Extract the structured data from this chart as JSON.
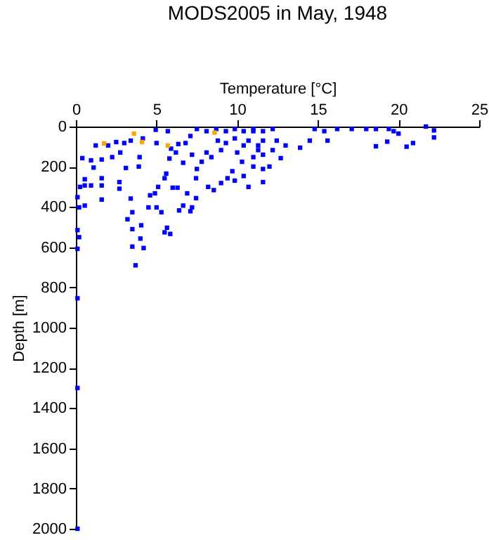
{
  "chart_data": {
    "type": "scatter",
    "title": "MODS2005 in May, 1948",
    "xlabel": "Temperature [°C]",
    "ylabel": "Depth [m]",
    "xlim": [
      0,
      25
    ],
    "xticks": [
      0,
      5,
      10,
      15,
      20,
      25
    ],
    "ylim": [
      2000,
      0
    ],
    "yticks": [
      0,
      200,
      400,
      600,
      800,
      1000,
      1200,
      1400,
      1600,
      1800,
      2000
    ],
    "grid": false,
    "legend": false,
    "marker": "square",
    "series": [
      {
        "color": "#0000ff",
        "x": [
          0.1,
          0.1,
          0.1,
          0.1,
          0.2,
          0.1,
          0.2,
          0.55,
          0.1,
          0.26,
          0.55,
          0.94,
          1.6,
          1.6,
          0.55,
          1.6,
          0.4,
          0.94,
          1.1,
          1.6,
          1.23,
          2,
          2.25,
          2.75,
          2.7,
          2.7,
          2.5,
          3,
          3.4,
          4.15,
          3.95,
          3.1,
          3.9,
          3.4,
          3.5,
          3.2,
          3.5,
          4.05,
          4,
          4.2,
          3.7,
          3.5,
          4.6,
          4.9,
          4.5,
          5,
          5.3,
          5.65,
          5.85,
          5.5,
          4.95,
          5,
          5.7,
          5.9,
          5.8,
          5.6,
          5.5,
          5.1,
          6,
          6.3,
          6.4,
          6.65,
          7.2,
          7.1,
          6.9,
          7.45,
          7.45,
          6.65,
          6.2,
          6.35,
          6.8,
          7.2,
          7.1,
          7.5,
          7.8,
          8.4,
          8.1,
          8.8,
          9,
          8.2,
          8.55,
          9,
          9.4,
          9.85,
          9.7,
          10.4,
          10.7,
          10,
          10.3,
          11,
          11.6,
          12,
          12.2,
          7.5,
          8.1,
          9.3,
          9.85,
          10.4,
          11,
          11.6,
          12.2,
          9.85,
          10.7,
          11.6,
          10.4,
          11.3,
          9.3,
          8.7,
          11,
          11.3,
          11.6,
          12.45,
          13,
          13.9,
          12.7,
          11,
          11.6,
          14.8,
          15.4,
          16.2,
          17.1,
          18,
          18.6,
          19.4,
          19.7,
          20,
          15.6,
          14.5,
          18.6,
          19.3,
          20.5,
          20.9,
          21.7,
          22.2,
          22.2
        ],
        "values": [
          854,
          1300,
          2000,
          608,
          550,
          515,
          402,
          393,
          351,
          300,
          293,
          293,
          293,
          257,
          262,
          363,
          157,
          168,
          204,
          164,
          94,
          94,
          152,
          129,
          276,
          309,
          77,
          82,
          70,
          59,
          152,
          206,
          199,
          358,
          426,
          461,
          510,
          491,
          557,
          604,
          690,
          597,
          342,
          332,
          402,
          402,
          426,
          503,
          534,
          526,
          16,
          82,
          23,
          110,
          159,
          234,
          257,
          300,
          304,
          304,
          417,
          393,
          402,
          421,
          332,
          356,
          257,
          180,
          129,
          87,
          82,
          140,
          47,
          211,
          175,
          152,
          129,
          70,
          117,
          300,
          316,
          281,
          257,
          269,
          222,
          246,
          300,
          129,
          175,
          152,
          211,
          199,
          117,
          12,
          23,
          23,
          12,
          23,
          12,
          23,
          12,
          59,
          70,
          70,
          94,
          117,
          82,
          12,
          23,
          94,
          140,
          70,
          94,
          105,
          157,
          199,
          276,
          12,
          23,
          12,
          12,
          12,
          12,
          12,
          23,
          35,
          70,
          70,
          98,
          75,
          100,
          82,
          0,
          19,
          54
        ]
      },
      {
        "color": "#ffa500",
        "x": [
          1.75,
          3.6,
          4.1,
          5.7,
          8.6
        ],
        "values": [
          84,
          35,
          77,
          94,
          30
        ]
      }
    ]
  }
}
